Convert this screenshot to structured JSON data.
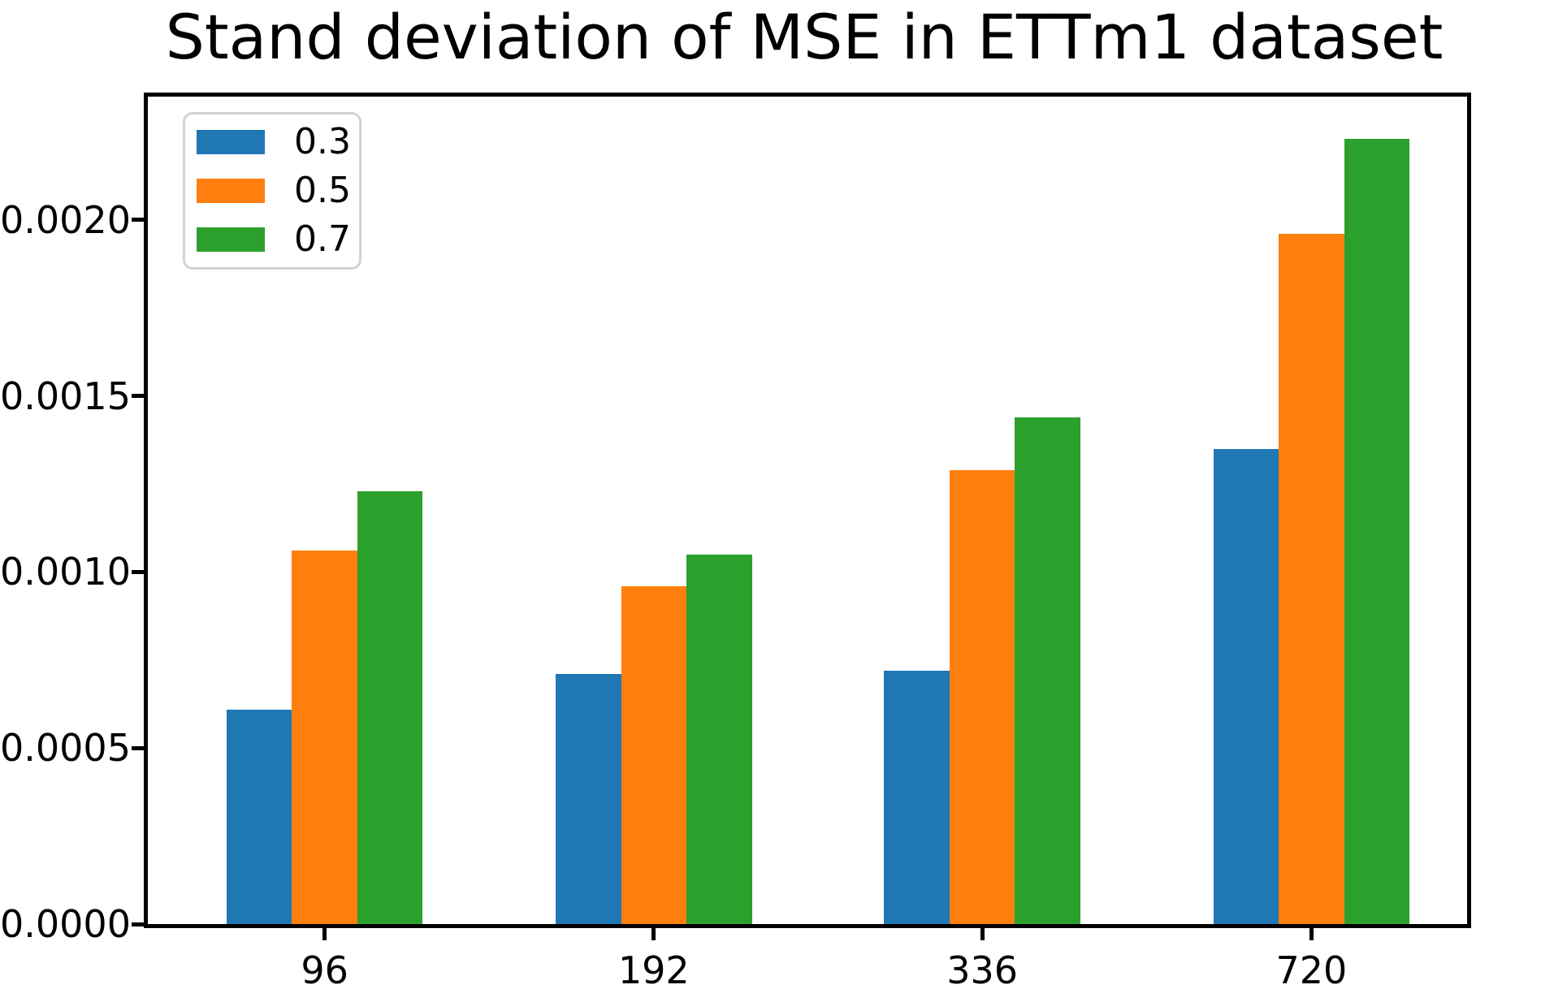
{
  "chart_data": {
    "type": "bar",
    "title": "Stand deviation of MSE in ETTm1 dataset",
    "xlabel": "",
    "ylabel": "",
    "categories": [
      "96",
      "192",
      "336",
      "720"
    ],
    "series": [
      {
        "name": "0.3",
        "color": "#1f77b4",
        "values": [
          0.00061,
          0.00071,
          0.00072,
          0.00135
        ]
      },
      {
        "name": "0.5",
        "color": "#ff7f0e",
        "values": [
          0.00106,
          0.00096,
          0.00129,
          0.00196
        ]
      },
      {
        "name": "0.7",
        "color": "#2ca02c",
        "values": [
          0.00123,
          0.00105,
          0.00144,
          0.00223
        ]
      }
    ],
    "y_ticks": [
      {
        "value": 0.0,
        "label": "0.0000"
      },
      {
        "value": 0.0005,
        "label": "0.0005"
      },
      {
        "value": 0.001,
        "label": "0.0010"
      },
      {
        "value": 0.0015,
        "label": "0.0015"
      },
      {
        "value": 0.002,
        "label": "0.0020"
      }
    ],
    "ylim": [
      0,
      0.00235
    ],
    "grid": false,
    "background_color": "#ffffff",
    "axis_color": "#000000",
    "text_color": "#000000",
    "legend": {
      "position": "upper-left",
      "entries": [
        "0.3",
        "0.5",
        "0.7"
      ]
    }
  }
}
